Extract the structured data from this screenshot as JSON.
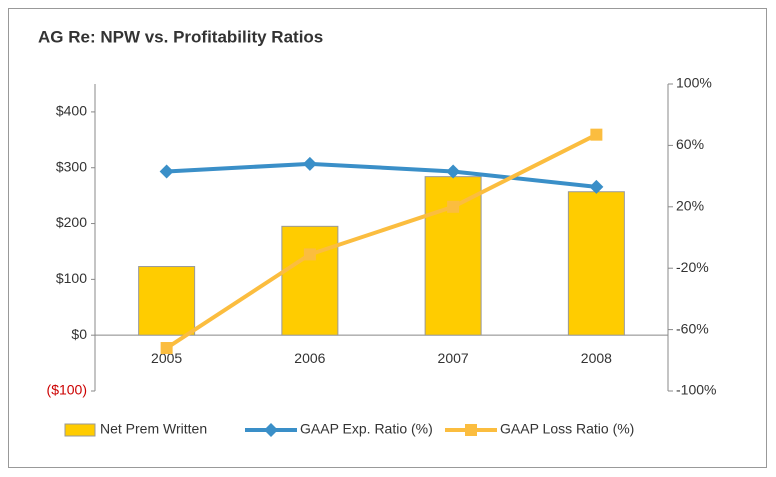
{
  "chart_data": {
    "type": "combo",
    "title": "AG Re: NPW vs. Profitability Ratios",
    "categories": [
      "2005",
      "2006",
      "2007",
      "2008"
    ],
    "series": [
      {
        "name": "Net Prem Written",
        "type": "bar",
        "axis": "y",
        "color": "#ffcc00",
        "values": [
          123,
          195,
          284,
          257
        ]
      },
      {
        "name": "GAAP Exp. Ratio (%)",
        "type": "line",
        "marker": "diamond",
        "axis": "y2",
        "color": "#3a8fc8",
        "values": [
          43,
          48,
          43,
          33
        ]
      },
      {
        "name": "GAAP Loss Ratio (%)",
        "type": "line",
        "marker": "square",
        "axis": "y2",
        "color": "#fbbd3f",
        "values": [
          -72,
          -11,
          20,
          67
        ]
      }
    ],
    "ylim": [
      -100,
      450
    ],
    "yticks": [
      {
        "value": -100,
        "label": "($100)"
      },
      {
        "value": 0,
        "label": "$0"
      },
      {
        "value": 100,
        "label": "$100"
      },
      {
        "value": 200,
        "label": "$200"
      },
      {
        "value": 300,
        "label": "$300"
      },
      {
        "value": 400,
        "label": "$400"
      }
    ],
    "y2lim": [
      -100,
      100
    ],
    "y2ticks": [
      {
        "value": -100,
        "label": "-100%"
      },
      {
        "value": -60,
        "label": "-60%"
      },
      {
        "value": -20,
        "label": "-20%"
      },
      {
        "value": 20,
        "label": "20%"
      },
      {
        "value": 60,
        "label": "60%"
      },
      {
        "value": 100,
        "label": "100%"
      }
    ],
    "negative_tick_color": "#cc0000",
    "grid": false,
    "legend": "bottom"
  }
}
